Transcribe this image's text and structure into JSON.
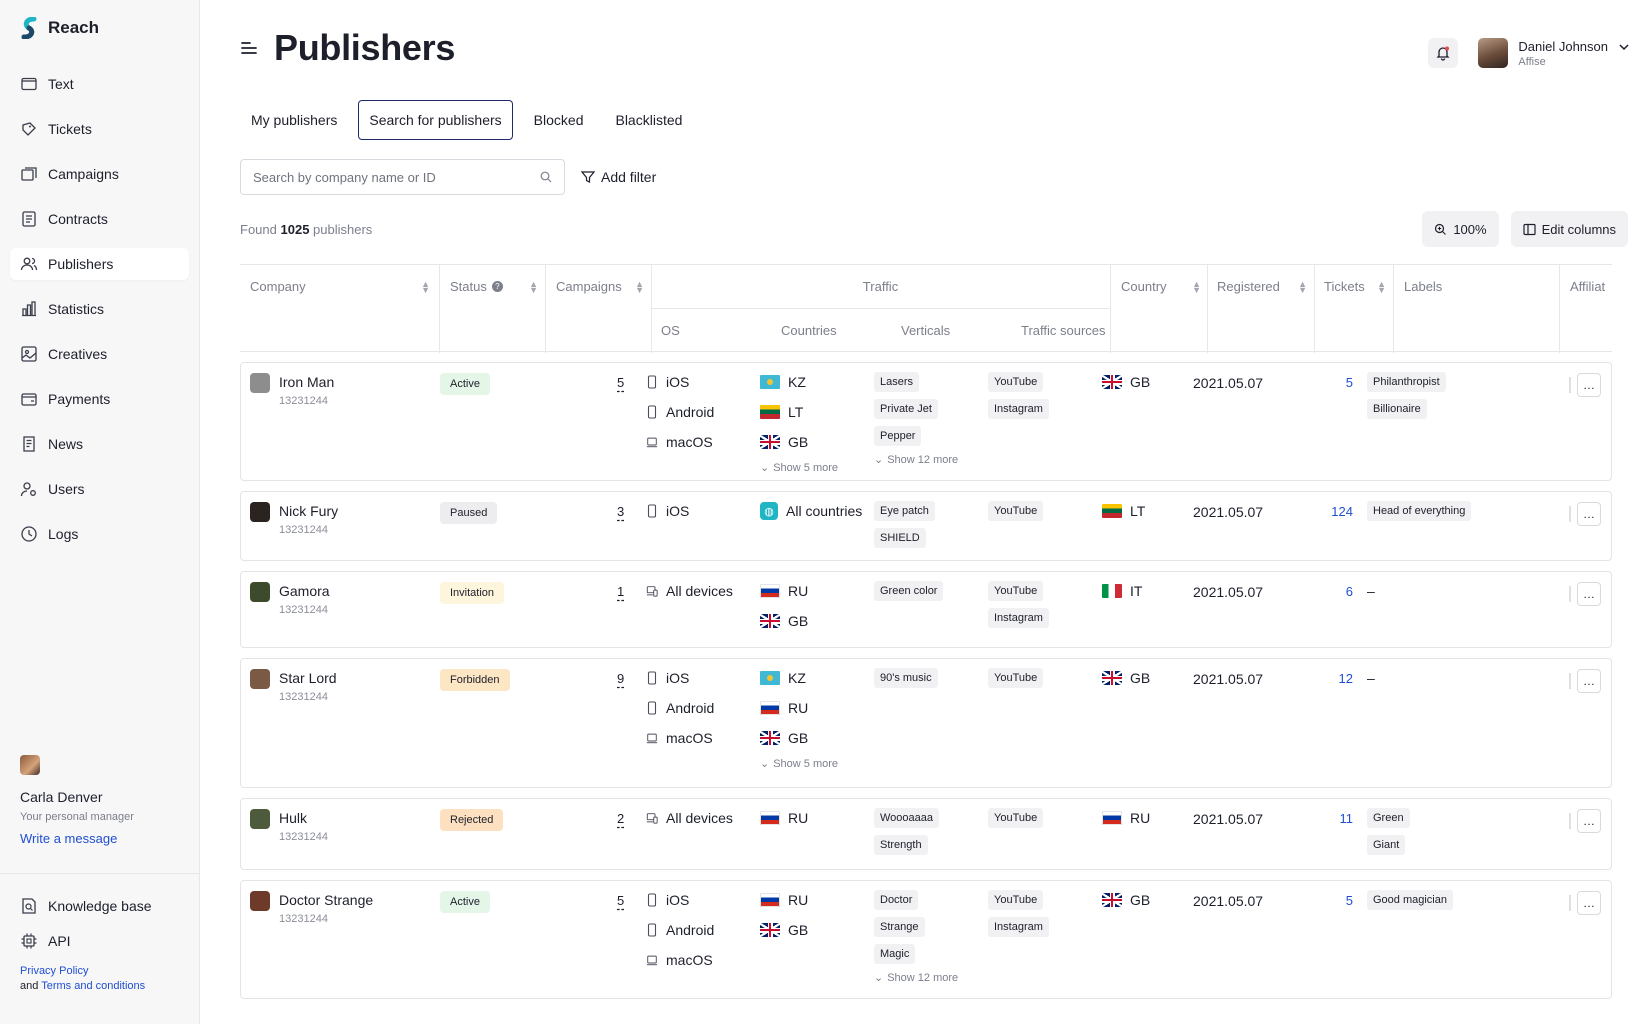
{
  "app": {
    "name": "Reach"
  },
  "sidebar": {
    "items": [
      {
        "label": "Text",
        "icon": "window-icon"
      },
      {
        "label": "Tickets",
        "icon": "ticket-icon"
      },
      {
        "label": "Campaigns",
        "icon": "campaigns-icon"
      },
      {
        "label": "Contracts",
        "icon": "contract-icon"
      },
      {
        "label": "Publishers",
        "icon": "users-icon"
      },
      {
        "label": "Statistics",
        "icon": "bar-chart-icon"
      },
      {
        "label": "Creatives",
        "icon": "creatives-icon"
      },
      {
        "label": "Payments",
        "icon": "wallet-icon"
      },
      {
        "label": "News",
        "icon": "news-icon"
      },
      {
        "label": "Users",
        "icon": "user-gear-icon"
      },
      {
        "label": "Logs",
        "icon": "clock-icon"
      }
    ],
    "manager": {
      "name": "Carla Denver",
      "role": "Your personal manager",
      "link": "Write a message"
    },
    "bottom": [
      {
        "label": "Knowledge base",
        "icon": "book-search-icon"
      },
      {
        "label": "API",
        "icon": "chip-icon"
      }
    ],
    "legal": {
      "privacy": "Privacy Policy",
      "and": "and",
      "terms": "Terms and conditions"
    }
  },
  "header": {
    "title": "Publishers",
    "user": {
      "name": "Daniel Johnson",
      "company": "Affise"
    }
  },
  "tabs": [
    "My publishers",
    "Search for publishers",
    "Blocked",
    "Blacklisted"
  ],
  "search": {
    "placeholder": "Search by company name or ID"
  },
  "filter": {
    "label": "Add filter"
  },
  "found": {
    "prefix": "Found",
    "count": "1025",
    "suffix": "publishers"
  },
  "zoom": {
    "label": "100%"
  },
  "edit_columns": {
    "label": "Edit columns"
  },
  "table": {
    "headers": {
      "company": "Company",
      "status": "Status",
      "campaigns": "Campaigns",
      "traffic": "Traffic",
      "os": "OS",
      "countries": "Countries",
      "verticals": "Verticals",
      "traffic_sources": "Traffic sources",
      "country": "Country",
      "registered": "Registered",
      "tickets": "Tickets",
      "labels": "Labels",
      "affiliate": "Affiliat"
    },
    "rows": [
      {
        "name": "Iron Man",
        "id": "13231244",
        "status": "Active",
        "status_kind": "active",
        "campaigns": "5",
        "os": [
          {
            "label": "iOS",
            "icon": "phone-icon"
          },
          {
            "label": "Android",
            "icon": "phone-icon"
          },
          {
            "label": "macOS",
            "icon": "laptop-icon"
          }
        ],
        "countries": [
          {
            "code": "kz",
            "label": "KZ"
          },
          {
            "code": "lt",
            "label": "LT"
          },
          {
            "code": "gb",
            "label": "GB"
          }
        ],
        "countries_more": "Show 5 more",
        "verticals": [
          "Lasers",
          "Private Jet",
          "Pepper"
        ],
        "verticals_more": "Show 12 more",
        "sources": [
          "YouTube",
          "Instagram"
        ],
        "country": {
          "code": "gb",
          "label": "GB"
        },
        "registered": "2021.05.07",
        "tickets": "5",
        "labels": [
          "Philanthropist",
          "Billionaire"
        ],
        "avatar_color": "#8d8d8d"
      },
      {
        "name": "Nick Fury",
        "id": "13231244",
        "status": "Paused",
        "status_kind": "paused",
        "campaigns": "3",
        "os": [
          {
            "label": "iOS",
            "icon": "phone-icon"
          }
        ],
        "countries": [
          {
            "code": "world",
            "label": "All countries"
          }
        ],
        "countries_more": "",
        "verticals": [
          "Eye patch",
          "SHIELD"
        ],
        "verticals_more": "",
        "sources": [
          "YouTube"
        ],
        "country": {
          "code": "lt",
          "label": "LT"
        },
        "registered": "2021.05.07",
        "tickets": "124",
        "labels": [
          "Head of everything"
        ],
        "avatar_color": "#2b2320"
      },
      {
        "name": "Gamora",
        "id": "13231244",
        "status": "Invitation",
        "status_kind": "invitation",
        "campaigns": "1",
        "os": [
          {
            "label": "All devices",
            "icon": "devices-icon"
          }
        ],
        "countries": [
          {
            "code": "ru",
            "label": "RU"
          },
          {
            "code": "gb",
            "label": "GB"
          }
        ],
        "countries_more": "",
        "verticals": [
          "Green color"
        ],
        "verticals_more": "",
        "sources": [
          "YouTube",
          "Instagram"
        ],
        "country": {
          "code": "it",
          "label": "IT"
        },
        "registered": "2021.05.07",
        "tickets": "6",
        "labels": [
          "–"
        ],
        "avatar_color": "#3d4a2c"
      },
      {
        "name": "Star Lord",
        "id": "13231244",
        "status": "Forbidden",
        "status_kind": "forbidden",
        "campaigns": "9",
        "os": [
          {
            "label": "iOS",
            "icon": "phone-icon"
          },
          {
            "label": "Android",
            "icon": "phone-icon"
          },
          {
            "label": "macOS",
            "icon": "laptop-icon"
          }
        ],
        "countries": [
          {
            "code": "kz",
            "label": "KZ"
          },
          {
            "code": "ru",
            "label": "RU"
          },
          {
            "code": "gb",
            "label": "GB"
          }
        ],
        "countries_more": "Show 5 more",
        "verticals": [
          "90's music"
        ],
        "verticals_more": "",
        "sources": [
          "YouTube"
        ],
        "country": {
          "code": "gb",
          "label": "GB"
        },
        "registered": "2021.05.07",
        "tickets": "12",
        "labels": [
          "–"
        ],
        "avatar_color": "#7a5a44"
      },
      {
        "name": "Hulk",
        "id": "13231244",
        "status": "Rejected",
        "status_kind": "rejected",
        "campaigns": "2",
        "os": [
          {
            "label": "All devices",
            "icon": "devices-icon"
          }
        ],
        "countries": [
          {
            "code": "ru",
            "label": "RU"
          }
        ],
        "countries_more": "",
        "verticals": [
          "Woooaaaa",
          "Strength"
        ],
        "verticals_more": "",
        "sources": [
          "YouTube"
        ],
        "country": {
          "code": "ru",
          "label": "RU"
        },
        "registered": "2021.05.07",
        "tickets": "11",
        "labels": [
          "Green",
          "Giant"
        ],
        "avatar_color": "#4e5a3c"
      },
      {
        "name": "Doctor Strange",
        "id": "13231244",
        "status": "Active",
        "status_kind": "active",
        "campaigns": "5",
        "os": [
          {
            "label": "iOS",
            "icon": "phone-icon"
          },
          {
            "label": "Android",
            "icon": "phone-icon"
          },
          {
            "label": "macOS",
            "icon": "laptop-icon"
          }
        ],
        "countries": [
          {
            "code": "ru",
            "label": "RU"
          },
          {
            "code": "gb",
            "label": "GB"
          }
        ],
        "countries_more": "",
        "verticals": [
          "Doctor",
          "Strange",
          "Magic"
        ],
        "verticals_more": "Show 12 more",
        "sources": [
          "YouTube",
          "Instagram"
        ],
        "country": {
          "code": "gb",
          "label": "GB"
        },
        "registered": "2021.05.07",
        "tickets": "5",
        "labels": [
          "Good magician"
        ],
        "avatar_color": "#6e3b2a"
      }
    ]
  },
  "colors": {
    "accent": "#1f4fd1",
    "active_tab_border": "#1f2a6b",
    "logo": "#1fb5c4"
  }
}
